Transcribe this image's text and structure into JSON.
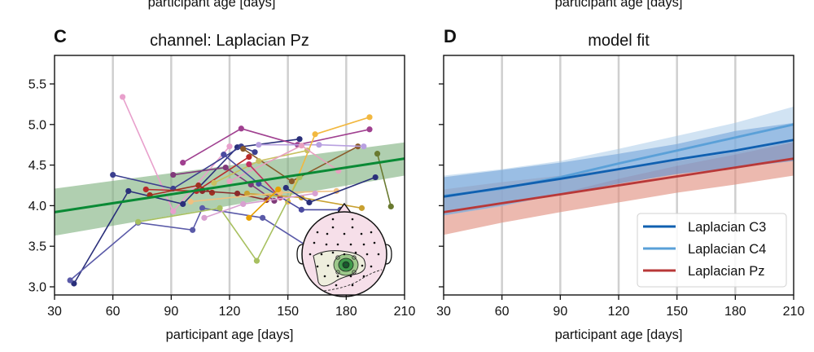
{
  "header_fragment": "participant age [days]",
  "chart_data": [
    {
      "panel": "C",
      "type": "line",
      "title": "channel: Laplacian Pz",
      "xlabel": "participant age [days]",
      "ylabel": "",
      "xlim": [
        30,
        210
      ],
      "ylim": [
        2.9,
        5.85
      ],
      "xticks": [
        30,
        60,
        90,
        120,
        150,
        180,
        210
      ],
      "yticks": [
        3.0,
        3.5,
        4.0,
        4.5,
        5.0,
        5.5
      ],
      "ytick_labels": [
        "3.0",
        "3.5",
        "4.0",
        "4.5",
        "5.0",
        "5.5"
      ],
      "grid": "vertical",
      "fit": {
        "color": "#0a8a35",
        "band_color": "#7fb27f",
        "line": [
          [
            30,
            3.92
          ],
          [
            210,
            4.58
          ]
        ],
        "band_upper": [
          [
            30,
            4.21
          ],
          [
            210,
            4.78
          ]
        ],
        "band_lower": [
          [
            30,
            3.63
          ],
          [
            210,
            4.37
          ]
        ]
      },
      "participants": [
        {
          "color": "#e8a0cc",
          "points": [
            [
              65,
              5.34
            ],
            [
              91,
              3.93
            ],
            [
              120,
              4.73
            ]
          ]
        },
        {
          "color": "#2a2f7a",
          "points": [
            [
              40,
              3.04
            ],
            [
              68,
              4.18
            ],
            [
              96,
              4.02
            ],
            [
              124,
              4.72
            ],
            [
              156,
              4.82
            ]
          ]
        },
        {
          "color": "#3b3f8f",
          "points": [
            [
              60,
              4.38
            ],
            [
              91,
              4.21
            ],
            [
              126,
              4.73
            ],
            [
              133,
              4.66
            ]
          ]
        },
        {
          "color": "#5a5aa8",
          "points": [
            [
              38,
              3.08
            ],
            [
              73,
              3.79
            ],
            [
              101,
              3.7
            ],
            [
              106,
              3.97
            ],
            [
              137,
              3.85
            ],
            [
              160,
              3.5
            ]
          ]
        },
        {
          "color": "#b82a2a",
          "points": [
            [
              77,
              4.2
            ],
            [
              103,
              4.18
            ],
            [
              130,
              4.6
            ]
          ]
        },
        {
          "color": "#a03020",
          "points": [
            [
              79,
              4.13
            ],
            [
              104,
              4.25
            ],
            [
              111,
              4.16
            ]
          ]
        },
        {
          "color": "#803a7a",
          "points": [
            [
              91,
              4.38
            ],
            [
              118,
              4.47
            ],
            [
              131,
              4.26
            ],
            [
              143,
              4.06
            ]
          ]
        },
        {
          "color": "#a04090",
          "points": [
            [
              96,
              4.53
            ],
            [
              126,
              4.95
            ],
            [
              155,
              4.75
            ],
            [
              192,
              4.94
            ]
          ]
        },
        {
          "color": "#8a2a2a",
          "points": [
            [
              106,
              4.18
            ],
            [
              124,
              4.15
            ],
            [
              139,
              4.07
            ]
          ]
        },
        {
          "color": "#8a5a2a",
          "points": [
            [
              127,
              4.7
            ],
            [
              152,
              4.3
            ],
            [
              186,
              4.73
            ]
          ]
        },
        {
          "color": "#b8a0e0",
          "points": [
            [
              135,
              4.75
            ],
            [
              166,
              4.75
            ],
            [
              189,
              4.73
            ]
          ]
        },
        {
          "color": "#f2b840",
          "points": [
            [
              150,
              4.05
            ],
            [
              164,
              4.88
            ],
            [
              192,
              5.09
            ]
          ]
        },
        {
          "color": "#c8c060",
          "points": [
            [
              112,
              4.28
            ],
            [
              135,
              4.55
            ],
            [
              160,
              4.68
            ]
          ]
        },
        {
          "color": "#e8a0c0",
          "points": [
            [
              120,
              4.3
            ],
            [
              157,
              4.74
            ],
            [
              176,
              4.43
            ]
          ]
        },
        {
          "color": "#c03060",
          "points": [
            [
              130,
              4.51
            ],
            [
              146,
              4.1
            ]
          ]
        },
        {
          "color": "#4a4aa0",
          "points": [
            [
              117,
              4.63
            ],
            [
              135,
              4.27
            ],
            [
              157,
              3.95
            ],
            [
              177,
              3.95
            ]
          ]
        },
        {
          "color": "#c8a030",
          "points": [
            [
              129,
              4.15
            ],
            [
              157,
              4.1
            ],
            [
              188,
              3.97
            ]
          ]
        },
        {
          "color": "#a8c060",
          "points": [
            [
              73,
              3.8
            ],
            [
              115,
              3.97
            ],
            [
              134,
              3.32
            ],
            [
              156,
              4.35
            ]
          ]
        },
        {
          "color": "#f0c080",
          "points": [
            [
              100,
              4.05
            ],
            [
              146,
              4.16
            ],
            [
              175,
              4.18
            ]
          ]
        },
        {
          "color": "#d8a0d0",
          "points": [
            [
              107,
              3.85
            ],
            [
              127,
              4.02
            ],
            [
              164,
              4.15
            ]
          ]
        },
        {
          "color": "#2a2f7a",
          "points": [
            [
              149,
              4.22
            ],
            [
              161,
              4.04
            ],
            [
              195,
              4.35
            ]
          ]
        },
        {
          "color": "#e8a000",
          "points": [
            [
              130,
              3.85
            ],
            [
              145,
              4.2
            ]
          ]
        },
        {
          "color": "#6a7a30",
          "points": [
            [
              196,
              4.64
            ],
            [
              203,
              3.99
            ]
          ]
        }
      ],
      "inset": "scalp topography map (head outline with electrode dots, green contour at Pz region)"
    },
    {
      "panel": "D",
      "type": "line",
      "title": "model fit",
      "xlabel": "participant age [days]",
      "xlim": [
        30,
        210
      ],
      "ylim": [
        2.9,
        5.85
      ],
      "xticks": [
        30,
        60,
        90,
        120,
        150,
        180,
        210
      ],
      "yticks": [
        3.0,
        3.5,
        4.0,
        4.5,
        5.0,
        5.5
      ],
      "grid": "vertical",
      "legend": "bottom-right",
      "series": [
        {
          "name": "Laplacian C3",
          "color": "#1060b0",
          "band_color": "#5a8fd0",
          "x": [
            30,
            60,
            90,
            120,
            150,
            180,
            210
          ],
          "y": [
            4.11,
            4.22,
            4.33,
            4.45,
            4.57,
            4.68,
            4.81
          ],
          "upper": [
            4.35,
            4.44,
            4.53,
            4.64,
            4.76,
            4.92,
            5.02
          ],
          "lower": [
            3.88,
            4.0,
            4.14,
            4.27,
            4.39,
            4.47,
            4.55
          ]
        },
        {
          "name": "Laplacian C4",
          "color": "#5aa0d8",
          "band_color": "#9ac0e4",
          "x": [
            30,
            60,
            90,
            120,
            150,
            180,
            210
          ],
          "y": [
            4.12,
            4.21,
            4.35,
            4.52,
            4.68,
            4.84,
            5.0
          ],
          "upper": [
            4.37,
            4.45,
            4.55,
            4.7,
            4.86,
            5.02,
            5.22
          ],
          "lower": [
            3.88,
            3.99,
            4.15,
            4.33,
            4.49,
            4.63,
            4.78
          ]
        },
        {
          "name": "Laplacian Pz",
          "color": "#b83838",
          "band_color": "#e08a7a",
          "x": [
            30,
            60,
            90,
            120,
            150,
            180,
            210
          ],
          "y": [
            3.92,
            4.03,
            4.14,
            4.25,
            4.36,
            4.47,
            4.58
          ],
          "upper": [
            4.2,
            4.29,
            4.37,
            4.46,
            4.55,
            4.66,
            4.79
          ],
          "lower": [
            3.64,
            3.79,
            3.92,
            4.04,
            4.16,
            4.26,
            4.37
          ]
        }
      ]
    }
  ]
}
